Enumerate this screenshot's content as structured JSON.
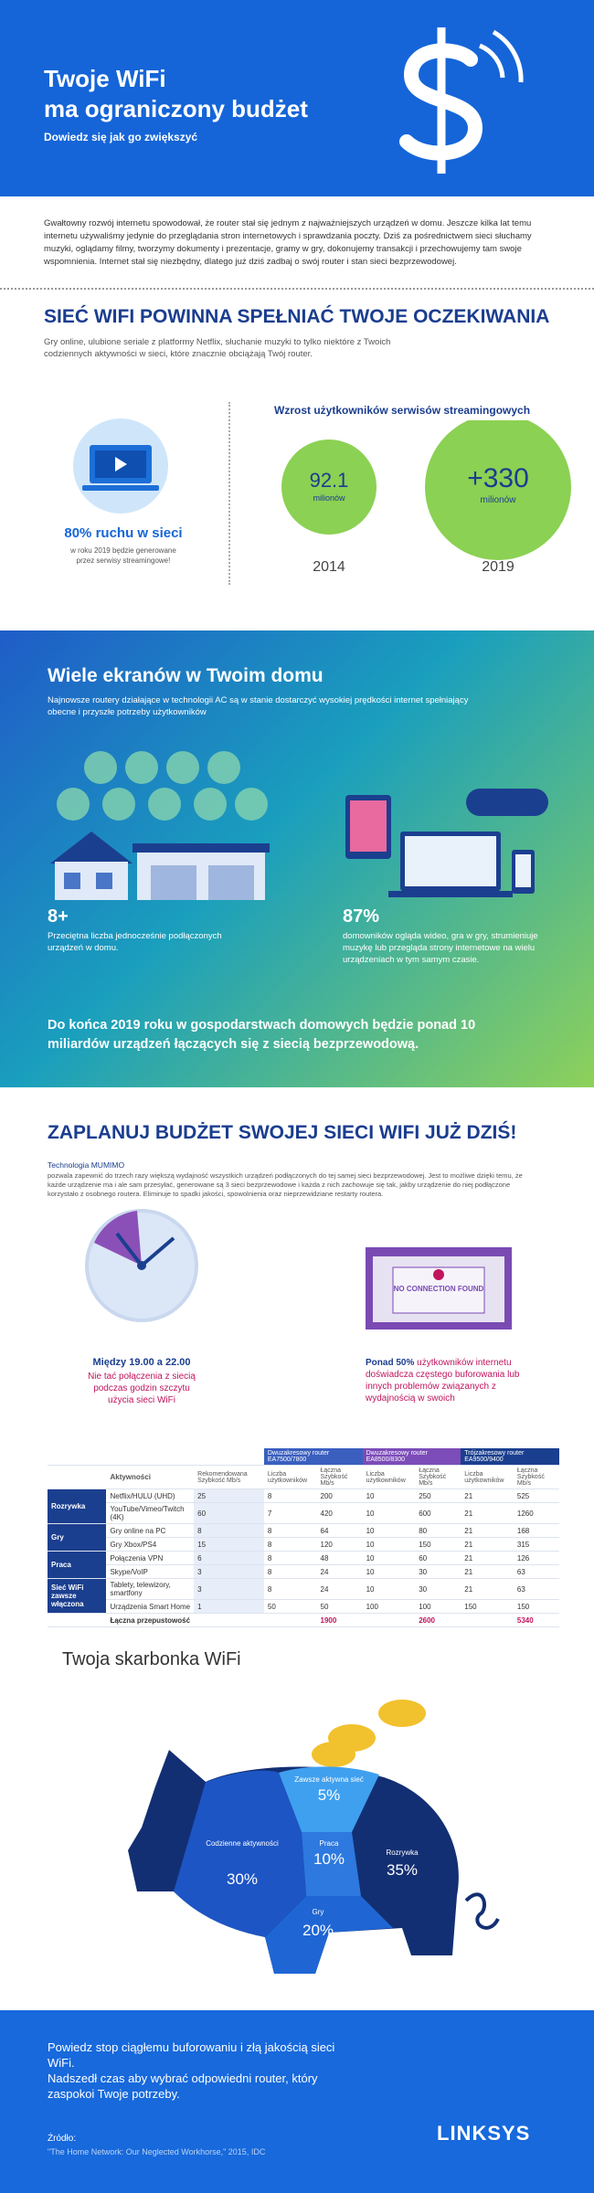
{
  "header": {
    "title_line1": "Twoje WiFi",
    "title_line2": "ma ograniczony budżet",
    "subtitle": "Dowiedz się jak go zwiększyć"
  },
  "intro": "Gwałtowny rozwój internetu spowodował, że router stał się jednym z najważniejszych urządzeń w domu. Jeszcze kilka lat temu internetu używaliśmy jedynie do przeglądania stron internetowych i sprawdzania poczty. Dziś za pośrednictwem sieci słuchamy muzyki, oglądamy filmy, tworzymy dokumenty i prezentacje, gramy w gry, dokonujemy transakcji i przechowujemy tam swoje wspomnienia. Internet stał się niezbędny, dlatego już dziś zadbaj o swój router i stan sieci bezprzewodowej.",
  "section1": {
    "title": "SIEĆ WIFI POWINNA SPEŁNIAĆ TWOJE OCZEKIWANIA",
    "text": "Gry online, ulubione seriale z platformy Netflix, słuchanie muzyki to tylko niektóre z Twoich codziennych aktywności w sieci, które znacznie obciążają Twój router.",
    "traffic_stat": "80% ruchu w sieci",
    "traffic_note": "w roku 2019 będzie generowane przez serwisy streamingowe!",
    "growth_title": "Wzrost użytkowników serwisów streamingowych",
    "circles": [
      {
        "value": "92.1",
        "unit": "milionów",
        "year": "2014"
      },
      {
        "value": "+330",
        "unit": "milionów",
        "year": "2019"
      }
    ]
  },
  "section2": {
    "title": "Wiele ekranów w Twoim domu",
    "text": "Najnowsze routery działające w technologii AC są w stanie dostarczyć wysokiej prędkości internet spełniający obecne i przyszłe potrzeby użytkowników",
    "stats": [
      {
        "value": "8+",
        "text": "Przeciętna liczba jednocześnie podłączonych urządzeń w domu."
      },
      {
        "value": "87%",
        "text": "domowników ogląda wideo, gra w gry, strumieniuje muzykę lub przegląda strony internetowe na wielu urządzeniach w tym samym czasie."
      }
    ],
    "statement": "Do końca 2019 roku w gospodarstwach domowych będzie ponad 10 miliardów urządzeń łączących się z siecią bezprzewodową."
  },
  "section3": {
    "title": "ZAPLANUJ BUDŻET SWOJEJ SIECI WIFI JUŻ DZIŚ!",
    "tech_title": "Technologia MUMIMO",
    "tech_text": "pozwala zapewnić do trzech razy większą wydajność wszystkich urządzeń podłączonych do tej samej sieci bezprzewodowej. Jest to możliwe dzięki temu, że każde urządzenie ma i ale sam przesyłać, generowane są 3 sieci bezprzewodowe i każda z nich zachowuje się tak, jakby urządzenie do niej podłączone korzystało z osobnego routera. Eliminuje to spadki jakości, spowolnienia oraz nieprzewidziane restarty routera.",
    "peak_title": "Między 19.00 a 22.00",
    "peak_text": "Nie tać połączenia z siecią podczas godzin szczytu użycia sieci WiFi",
    "screen_text": "NO CONNECTION FOUND",
    "buffer_bold": "Ponad 50%",
    "buffer_text": "użytkowników internetu doświadcza częstego buforowania lub innych problemów związanych z wydajnością w swoich"
  },
  "table": {
    "activity_header": "Aktywności",
    "rec_header": "Rekomendowana Szybkość Mb/s",
    "routers": [
      "Dwuzakresowy router EA7500/7800",
      "Dwuzakresowy router EA8500/8300",
      "Trójzakresowy router EA9500/9400"
    ],
    "users_header": "Liczba użytkowników",
    "speed_header": "Łączna Szybkość Mb/s",
    "groups": [
      {
        "category": "Rozrywka",
        "rows": [
          [
            "Netflix/HULU (UHD)",
            25,
            8,
            200,
            10,
            250,
            21,
            525
          ],
          [
            "YouTube/Vimeo/Twitch (4K)",
            60,
            7,
            420,
            10,
            600,
            21,
            1260
          ]
        ]
      },
      {
        "category": "Gry",
        "rows": [
          [
            "Gry online na PC",
            8,
            8,
            64,
            10,
            80,
            21,
            168
          ],
          [
            "Gry Xbox/PS4",
            15,
            8,
            120,
            10,
            150,
            21,
            315
          ]
        ]
      },
      {
        "category": "Praca",
        "rows": [
          [
            "Połączenia VPN",
            6,
            8,
            48,
            10,
            60,
            21,
            126
          ],
          [
            "Skype/VoIP",
            3,
            8,
            24,
            10,
            30,
            21,
            63
          ]
        ]
      },
      {
        "category": "Sieć WiFi zawsze włączona",
        "rows": [
          [
            "Tablety, telewizory, smartfony",
            3,
            8,
            24,
            10,
            30,
            21,
            63
          ],
          [
            "Urządzenia Smart Home",
            1,
            50,
            50,
            100,
            100,
            150,
            150
          ]
        ]
      }
    ],
    "total_label": "Łączna przepustowość",
    "totals": [
      1900,
      2600,
      5340
    ]
  },
  "piggy": {
    "title": "Twoja skarbonka WiFi",
    "segments": [
      {
        "label": "Zawsze aktywna sieć",
        "value": "5%"
      },
      {
        "label": "Praca",
        "value": "10%"
      },
      {
        "label": "Codzienne aktywności",
        "value": "30%"
      },
      {
        "label": "Rozrywka",
        "value": "35%"
      },
      {
        "label": "Gry",
        "value": "20%"
      }
    ]
  },
  "footer": {
    "text_line1": "Powiedz stop ciągłemu buforowaniu i złą jakością sieci WiFi.",
    "text_line2": "Nadszedł czas aby wybrać odpowiedni router, który zaspokoi Twoje potrzeby.",
    "source_label": "Źródło:",
    "source": "\"The Home Network: Our Neglected Workhorse,\" 2015, IDC",
    "logo": "LINKSYS"
  }
}
